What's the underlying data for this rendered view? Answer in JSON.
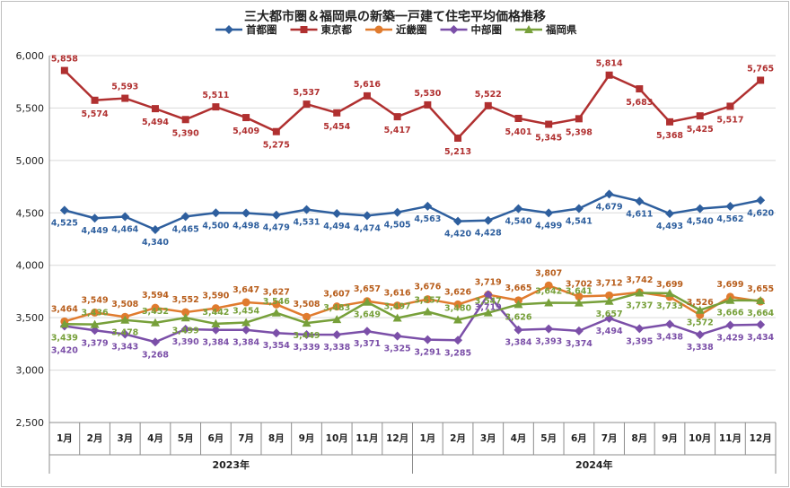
{
  "chart_data": {
    "type": "line",
    "title": "三大都市圏＆福岡県の新築一戸建て住宅平均価格推移",
    "categories": [
      "1月",
      "2月",
      "3月",
      "4月",
      "5月",
      "6月",
      "7月",
      "8月",
      "9月",
      "10月",
      "11月",
      "12月",
      "1月",
      "2月",
      "3月",
      "4月",
      "5月",
      "6月",
      "7月",
      "8月",
      "9月",
      "10月",
      "11月",
      "12月"
    ],
    "years": [
      "2023年",
      "2024年"
    ],
    "yticks": [
      "6,000",
      "5,500",
      "5,000",
      "4,500",
      "4,000",
      "3,500",
      "3,000",
      "2,500"
    ],
    "ylim": [
      2500,
      6000
    ],
    "grid": true,
    "legend_position": "top",
    "series": [
      {
        "name": "首都圏",
        "color": "#2E5F9E",
        "marker": "diamond",
        "values": [
          4525,
          4449,
          4464,
          4340,
          4465,
          4500,
          4498,
          4479,
          4531,
          4494,
          4474,
          4505,
          4563,
          4420,
          4428,
          4540,
          4499,
          4541,
          4679,
          4611,
          4493,
          4540,
          4562,
          4620
        ],
        "labels": [
          "4,525",
          "4,449",
          "4,464",
          "4,340",
          "4,465",
          "4,500",
          "4,498",
          "4,479",
          "4,531",
          "4,494",
          "4,474",
          "4,505",
          "4,563",
          "4,420",
          "4,428",
          "4,540",
          "4,499",
          "4,541",
          "4,679",
          "4,611",
          "4,493",
          "4,540",
          "4,562",
          "4,620"
        ]
      },
      {
        "name": "東京都",
        "color": "#B03030",
        "marker": "square",
        "values": [
          5858,
          5574,
          5593,
          5494,
          5390,
          5511,
          5409,
          5275,
          5537,
          5454,
          5616,
          5417,
          5530,
          5213,
          5522,
          5401,
          5345,
          5398,
          5814,
          5683,
          5368,
          5425,
          5517,
          5765
        ],
        "labels": [
          "5,858",
          "5,574",
          "5,593",
          "5,494",
          "5,390",
          "5,511",
          "5,409",
          "5,275",
          "5,537",
          "5,454",
          "5,616",
          "5,417",
          "5,530",
          "5,213",
          "5,522",
          "5,401",
          "5,345",
          "5,398",
          "5,814",
          "5,683",
          "5,368",
          "5,425",
          "5,517",
          "5,765"
        ]
      },
      {
        "name": "近畿圏",
        "color": "#E07B2E",
        "marker": "circle",
        "values": [
          3464,
          3549,
          3508,
          3594,
          3552,
          3590,
          3647,
          3627,
          3508,
          3607,
          3657,
          3616,
          3676,
          3626,
          3719,
          3665,
          3807,
          3702,
          3712,
          3742,
          3699,
          3526,
          3699,
          3655
        ],
        "labels": [
          "3,464",
          "3,549",
          "3,508",
          "3,594",
          "3,552",
          "3,590",
          "3,647",
          "3,627",
          "3,508",
          "3,607",
          "3,657",
          "3,616",
          "3,676",
          "3,626",
          "3,719",
          "3,665",
          "3,807",
          "3,702",
          "3,712",
          "3,742",
          "3,699",
          "3,526",
          "3,699",
          "3,655"
        ]
      },
      {
        "name": "中部圏",
        "color": "#7B4FA8",
        "marker": "diamond",
        "values": [
          3420,
          3379,
          3343,
          3268,
          3390,
          3384,
          3384,
          3354,
          3339,
          3338,
          3371,
          3325,
          3291,
          3285,
          3719,
          3384,
          3393,
          3374,
          3494,
          3395,
          3438,
          3338,
          3429,
          3434
        ],
        "labels": [
          "3,420",
          "3,379",
          "3,343",
          "3,268",
          "3,390",
          "3,384",
          "3,384",
          "3,354",
          "3,339",
          "3,338",
          "3,371",
          "3,325",
          "3,291",
          "3,285",
          "3,719",
          "3,384",
          "3,393",
          "3,374",
          "3,494",
          "3,395",
          "3,438",
          "3,338",
          "3,429",
          "3,434"
        ]
      },
      {
        "name": "福岡県",
        "color": "#77A03A",
        "marker": "triangle",
        "values": [
          3439,
          3436,
          3478,
          3452,
          3499,
          3442,
          3454,
          3546,
          3449,
          3483,
          3649,
          3497,
          3557,
          3480,
          3547,
          3626,
          3642,
          3641,
          3657,
          3737,
          3733,
          3572,
          3666,
          3664
        ],
        "labels": [
          "3,439",
          "3,436",
          "3,478",
          "3,452",
          "3,499",
          "3,442",
          "3,454",
          "3,546",
          "3,449",
          "3,483",
          "3,649",
          "3,497",
          "3,557",
          "3,480",
          "3,547",
          "3,626",
          "3,642",
          "3,641",
          "3,657",
          "3,737",
          "3,733",
          "3,572",
          "3,666",
          "3,664"
        ]
      }
    ]
  }
}
